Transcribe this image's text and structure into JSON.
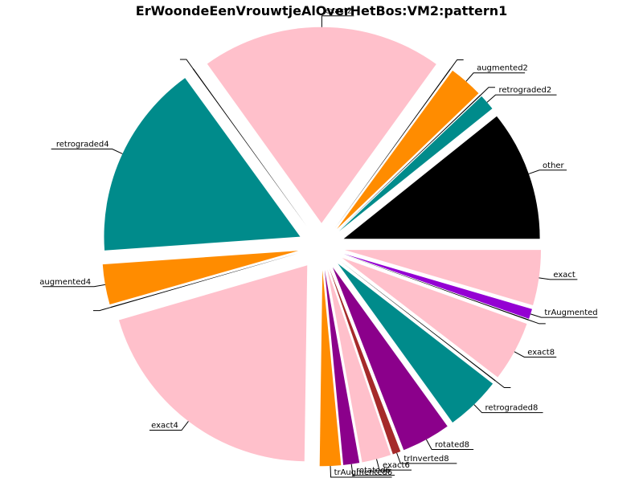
{
  "chart_data": {
    "type": "pie",
    "title": "ErWoondeEenVrouwtjeAlOverHetBos:VM2:pattern1",
    "start_angle_deg": 0,
    "direction": "clockwise",
    "explode": 0.12,
    "slices": [
      {
        "label": "exact",
        "value": 5.5,
        "color": "#ffc0cb"
      },
      {
        "label": "trAugmented",
        "value": 1.0,
        "color": "#9400d3"
      },
      {
        "label": "",
        "value": 0.1,
        "color": "#000000"
      },
      {
        "label": "exact8",
        "value": 6.0,
        "color": "#ffc0cb"
      },
      {
        "label": "",
        "value": 0.1,
        "color": "#000000"
      },
      {
        "label": "retrograded8",
        "value": 5.5,
        "color": "#008b8b"
      },
      {
        "label": "rotated8",
        "value": 4.9,
        "color": "#8b008b"
      },
      {
        "label": "trInverted8",
        "value": 0.8,
        "color": "#a52a2a"
      },
      {
        "label": "exact6",
        "value": 2.9,
        "color": "#ffc0cb"
      },
      {
        "label": "rotated6",
        "value": 1.6,
        "color": "#8b008b"
      },
      {
        "label": "trAugmented6",
        "value": 2.1,
        "color": "#ff8c00"
      },
      {
        "label": "exact4",
        "value": 24.5,
        "color": "#ffc0cb"
      },
      {
        "label": "",
        "value": 0.1,
        "color": "#000000"
      },
      {
        "label": "augmented4",
        "value": 4.0,
        "color": "#ff8c00"
      },
      {
        "label": "retrograded4",
        "value": 19.5,
        "color": "#008b8b"
      },
      {
        "label": "",
        "value": 0.1,
        "color": "#000000"
      },
      {
        "label": "exact2",
        "value": 24.0,
        "color": "#ffc0cb"
      },
      {
        "label": "",
        "value": 0.1,
        "color": "#000000"
      },
      {
        "label": "augmented2",
        "value": 3.4,
        "color": "#ff8c00"
      },
      {
        "label": "",
        "value": 0.1,
        "color": "#000000"
      },
      {
        "label": "retrograded2",
        "value": 1.6,
        "color": "#008b8b"
      },
      {
        "label": "other",
        "value": 13.0,
        "color": "#000000"
      }
    ]
  }
}
